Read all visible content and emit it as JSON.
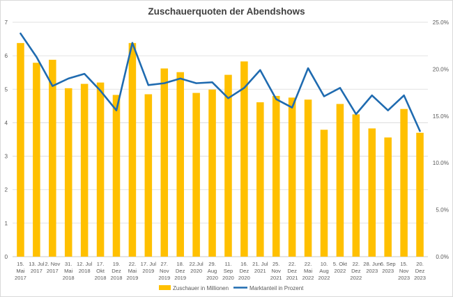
{
  "chart_data": {
    "type": "bar",
    "title": "Zuschauerquoten der Abendshows",
    "xlabel": "",
    "ylabel": "",
    "categories": [
      [
        "15.",
        "Mai",
        "2017"
      ],
      [
        "13. Jul",
        "2017"
      ],
      [
        "2. Nov",
        "2017"
      ],
      [
        "31.",
        "Mai",
        "2018"
      ],
      [
        "12. Jul",
        "2018"
      ],
      [
        "17.",
        "Okt",
        "2018"
      ],
      [
        "19.",
        "Dez",
        "2018"
      ],
      [
        "22.",
        "Mai",
        "2019"
      ],
      [
        "17. Jul",
        "2019"
      ],
      [
        "27.",
        "Nov",
        "2019"
      ],
      [
        "18.",
        "Dez",
        "2019"
      ],
      [
        "22.Jul",
        "2020"
      ],
      [
        "29.",
        "Aug",
        "2020"
      ],
      [
        "11.",
        "Sep",
        "2020"
      ],
      [
        "16.",
        "Dez",
        "2020"
      ],
      [
        "21. Jul",
        "2021"
      ],
      [
        "25.",
        "Nov",
        "2021"
      ],
      [
        "22.",
        "Dez",
        "2021"
      ],
      [
        "22.",
        "Mai",
        "2022"
      ],
      [
        "10.",
        "Aug",
        "2022"
      ],
      [
        "5. Okt",
        "2022"
      ],
      [
        "22.",
        "Dez",
        "2022"
      ],
      [
        "28. Jun",
        "2023"
      ],
      [
        "6. Sep",
        "2023"
      ],
      [
        "15.",
        "Nov",
        "2023"
      ],
      [
        "20.",
        "Dez",
        "2023"
      ]
    ],
    "series": [
      {
        "name": "Zuschauer in Millionen",
        "type": "bar",
        "axis": "left",
        "color": "#FFC000",
        "values": [
          6.38,
          5.79,
          5.88,
          5.03,
          5.16,
          5.2,
          4.83,
          6.38,
          4.85,
          5.62,
          5.51,
          4.89,
          4.99,
          5.43,
          5.83,
          4.61,
          4.8,
          4.75,
          4.69,
          3.79,
          4.56,
          4.25,
          3.83,
          3.56,
          4.41,
          3.7
        ]
      },
      {
        "name": "Marktanteil in Prozent",
        "type": "line",
        "axis": "right",
        "color": "#1F6BB0",
        "values": [
          23.8,
          21.3,
          18.2,
          19.0,
          19.5,
          17.7,
          15.6,
          22.8,
          18.3,
          18.5,
          19.0,
          18.5,
          18.6,
          16.9,
          18.0,
          19.9,
          16.8,
          15.9,
          20.1,
          17.1,
          18.0,
          15.2,
          17.2,
          15.6,
          17.2,
          13.4
        ]
      }
    ],
    "ylim": [
      0,
      7
    ],
    "y_ticks": [
      "0",
      "1",
      "2",
      "3",
      "4",
      "5",
      "6",
      "7"
    ],
    "y2lim": [
      0,
      25
    ],
    "y2_ticks": [
      "0.0%",
      "5.0%",
      "10.0%",
      "15.0%",
      "20.0%",
      "25.0%"
    ],
    "grid": "horizontal",
    "legend": "bottom"
  }
}
